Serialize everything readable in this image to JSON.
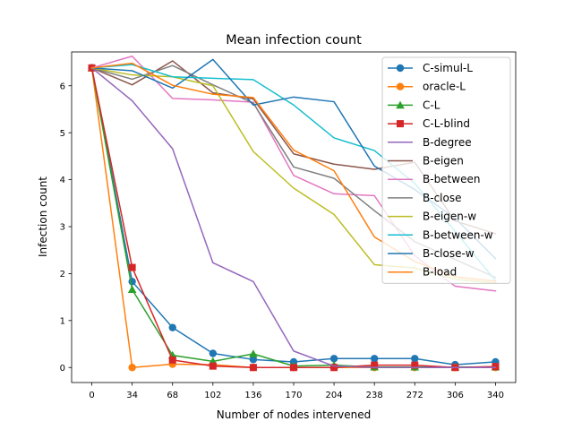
{
  "chart_data": {
    "type": "line",
    "title": "Mean infection count",
    "xlabel": "Number of nodes intervened",
    "ylabel": "Infection count",
    "x": [
      0,
      34,
      68,
      102,
      136,
      170,
      204,
      238,
      272,
      306,
      340
    ],
    "xlim": [
      -17.0,
      357.0
    ],
    "ylim": [
      -0.32,
      6.72
    ],
    "xticks": [
      0,
      34,
      68,
      102,
      136,
      170,
      204,
      238,
      272,
      306,
      340
    ],
    "yticks": [
      0,
      1,
      2,
      3,
      4,
      5,
      6
    ],
    "legend": "upper right",
    "series": [
      {
        "name": "C-simul-L",
        "color": "#1f77b4",
        "marker": "circle",
        "values": [
          6.38,
          1.83,
          0.85,
          0.3,
          0.17,
          0.12,
          0.19,
          0.19,
          0.19,
          0.06,
          0.12
        ]
      },
      {
        "name": "oracle-L",
        "color": "#ff7f0e",
        "marker": "circle",
        "values": [
          6.38,
          0.0,
          0.07,
          0.06,
          0.0,
          0.0,
          0.0,
          0.0,
          0.0,
          0.0,
          0.0
        ]
      },
      {
        "name": "C-L",
        "color": "#2ca02c",
        "marker": "triangle",
        "values": [
          6.38,
          1.66,
          0.26,
          0.13,
          0.29,
          0.03,
          0.05,
          0.01,
          0.01,
          0.01,
          0.01
        ]
      },
      {
        "name": "C-L-blind",
        "color": "#d62728",
        "marker": "square",
        "values": [
          6.38,
          2.13,
          0.16,
          0.03,
          0.0,
          0.0,
          0.0,
          0.05,
          0.05,
          0.0,
          0.02
        ]
      },
      {
        "name": "B-degree",
        "color": "#9467bd",
        "marker": "none",
        "values": [
          6.38,
          5.68,
          4.66,
          2.23,
          1.83,
          0.35,
          0.03,
          0.0,
          0.0,
          0.0,
          0.0
        ]
      },
      {
        "name": "B-eigen",
        "color": "#8c564b",
        "marker": "none",
        "values": [
          6.38,
          6.02,
          6.53,
          5.85,
          5.72,
          4.55,
          4.33,
          4.22,
          4.37,
          3.12,
          2.85
        ]
      },
      {
        "name": "B-between",
        "color": "#e377c2",
        "marker": "none",
        "values": [
          6.38,
          6.63,
          5.73,
          5.7,
          5.65,
          4.09,
          3.7,
          3.66,
          2.38,
          1.73,
          1.63
        ]
      },
      {
        "name": "B-close",
        "color": "#7f7f7f",
        "marker": "none",
        "values": [
          6.38,
          6.14,
          6.43,
          6.02,
          5.63,
          4.27,
          4.03,
          3.34,
          2.68,
          2.3,
          1.92
        ]
      },
      {
        "name": "B-eigen-w",
        "color": "#bcbd22",
        "marker": "none",
        "values": [
          6.38,
          6.23,
          6.19,
          6.0,
          4.6,
          3.82,
          3.26,
          2.19,
          2.12,
          1.88,
          1.8
        ]
      },
      {
        "name": "B-between-w",
        "color": "#17becf",
        "marker": "none",
        "values": [
          6.38,
          6.45,
          6.19,
          6.16,
          6.13,
          5.59,
          4.89,
          4.62,
          3.92,
          2.9,
          1.85
        ]
      },
      {
        "name": "B-close-w",
        "color": "#1f77b4",
        "marker": "none",
        "values": [
          6.38,
          6.32,
          5.95,
          6.56,
          5.59,
          5.76,
          5.66,
          4.29,
          3.79,
          3.18,
          2.32
        ]
      },
      {
        "name": "B-load",
        "color": "#ff7f0e",
        "marker": "none",
        "values": [
          6.38,
          6.48,
          6.01,
          5.82,
          5.75,
          4.63,
          4.19,
          2.78,
          2.26,
          1.93,
          1.84
        ]
      }
    ]
  }
}
